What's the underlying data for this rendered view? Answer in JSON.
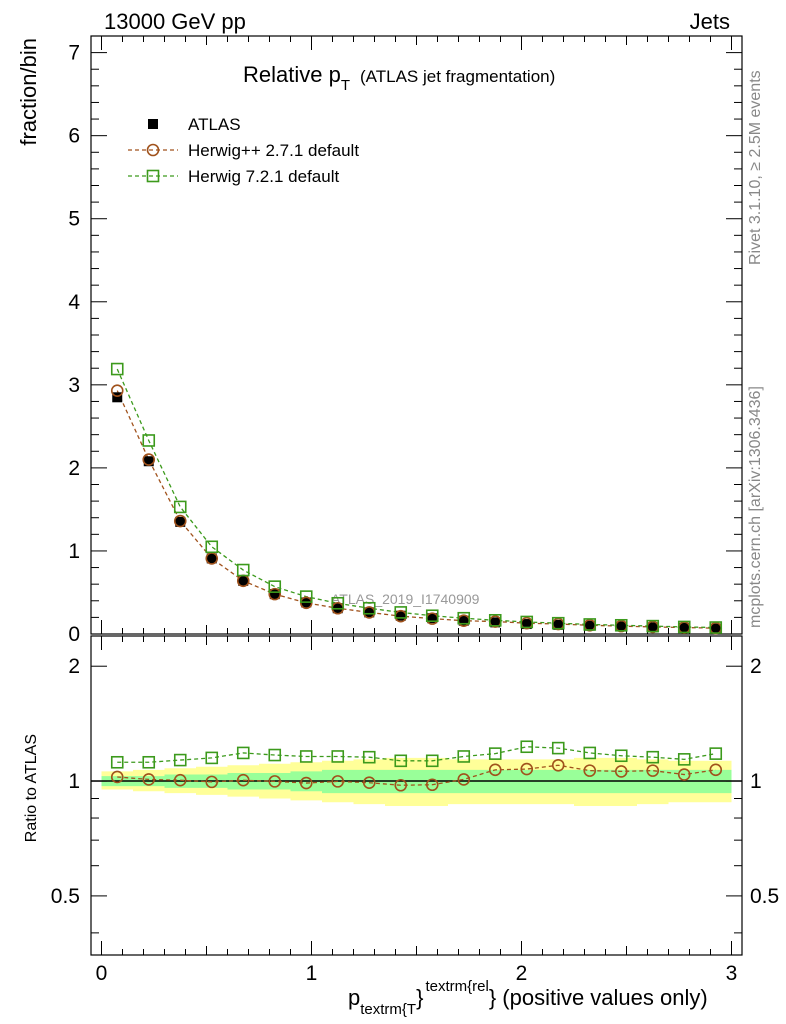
{
  "header": {
    "left": "13000 GeV pp",
    "right": "Jets"
  },
  "side_labels": {
    "rivet": "Rivet 3.1.10, ≥ 2.5M events",
    "mcplots": "mcplots.cern.ch [arXiv:1306.3436]"
  },
  "colors": {
    "atlas": "#000000",
    "herwig_pp": "#a0521c",
    "herwig7": "#3c9a1c",
    "band_outer": "#ffff99",
    "band_inner": "#99ff99"
  },
  "chart_data": [
    {
      "type": "scatter",
      "title_main": "Relative p",
      "title_sub": "T",
      "title_rest": "(ATLAS jet fragmentation)",
      "ylabel": "fraction/bin",
      "watermark": "ATLAS_2019_I1740909",
      "xlim": [
        -0.05,
        3.05
      ],
      "ylim": [
        0,
        7.2
      ],
      "yticks": [
        0,
        1,
        2,
        3,
        4,
        5,
        6,
        7
      ],
      "x": [
        0.075,
        0.225,
        0.375,
        0.525,
        0.675,
        0.825,
        0.975,
        1.125,
        1.275,
        1.425,
        1.575,
        1.725,
        1.875,
        2.025,
        2.175,
        2.325,
        2.475,
        2.625,
        2.775,
        2.925
      ],
      "series": [
        {
          "name": "ATLAS",
          "marker": "square-filled",
          "values": [
            2.85,
            2.08,
            1.35,
            0.91,
            0.64,
            0.48,
            0.38,
            0.31,
            0.26,
            0.22,
            0.19,
            0.16,
            0.14,
            0.12,
            0.11,
            0.1,
            0.09,
            0.08,
            0.075,
            0.065
          ]
        },
        {
          "name": "Herwig++ 2.7.1 default",
          "marker": "circle-open",
          "values": [
            2.93,
            2.1,
            1.36,
            0.91,
            0.64,
            0.48,
            0.375,
            0.31,
            0.26,
            0.215,
            0.185,
            0.16,
            0.15,
            0.13,
            0.12,
            0.105,
            0.095,
            0.085,
            0.078,
            0.07
          ]
        },
        {
          "name": "Herwig 7.2.1 default",
          "marker": "square-open",
          "values": [
            3.19,
            2.33,
            1.53,
            1.05,
            0.77,
            0.57,
            0.45,
            0.37,
            0.31,
            0.26,
            0.22,
            0.19,
            0.165,
            0.145,
            0.13,
            0.115,
            0.105,
            0.095,
            0.085,
            0.078
          ]
        }
      ]
    },
    {
      "type": "scatter",
      "ylabel": "Ratio to ATLAS",
      "xlabel_main": "p",
      "xlabel_sub": "textrm{T",
      "xlabel_sup": "textrm{rel",
      "xlabel_brace": "}",
      "xlabel_rest": "} (positive values only)",
      "xlim": [
        -0.05,
        3.05
      ],
      "ylim": [
        0.35,
        2.4
      ],
      "yscale": "log",
      "yticks": [
        0.5,
        1,
        2
      ],
      "ytick_labels": [
        "0.5",
        "1",
        "2"
      ],
      "xticks": [
        0,
        1,
        2,
        3
      ],
      "xtick_labels": [
        "0",
        "1",
        "2",
        "3"
      ],
      "x": [
        0.075,
        0.225,
        0.375,
        0.525,
        0.675,
        0.825,
        0.975,
        1.125,
        1.275,
        1.425,
        1.575,
        1.725,
        1.875,
        2.025,
        2.175,
        2.325,
        2.475,
        2.625,
        2.775,
        2.925
      ],
      "band_inner": {
        "low": [
          0.97,
          0.97,
          0.96,
          0.96,
          0.95,
          0.95,
          0.94,
          0.93,
          0.93,
          0.93,
          0.93,
          0.93,
          0.93,
          0.93,
          0.93,
          0.93,
          0.93,
          0.93,
          0.93,
          0.93
        ],
        "high": [
          1.03,
          1.03,
          1.04,
          1.04,
          1.05,
          1.05,
          1.06,
          1.07,
          1.07,
          1.07,
          1.07,
          1.07,
          1.07,
          1.07,
          1.07,
          1.07,
          1.07,
          1.07,
          1.07,
          1.07
        ]
      },
      "band_outer": {
        "low": [
          0.95,
          0.94,
          0.93,
          0.92,
          0.91,
          0.9,
          0.89,
          0.88,
          0.87,
          0.86,
          0.86,
          0.87,
          0.87,
          0.87,
          0.87,
          0.86,
          0.86,
          0.87,
          0.88,
          0.88
        ],
        "high": [
          1.06,
          1.07,
          1.08,
          1.09,
          1.1,
          1.11,
          1.12,
          1.13,
          1.14,
          1.15,
          1.15,
          1.14,
          1.14,
          1.14,
          1.14,
          1.15,
          1.15,
          1.14,
          1.13,
          1.13
        ]
      },
      "series": [
        {
          "name": "Herwig++ 2.7.1 default",
          "marker": "circle-open",
          "values": [
            1.025,
            1.01,
            1.005,
            0.995,
            1.005,
            0.998,
            0.988,
            0.998,
            0.99,
            0.975,
            0.978,
            1.01,
            1.07,
            1.075,
            1.1,
            1.065,
            1.06,
            1.065,
            1.04,
            1.07
          ]
        },
        {
          "name": "Herwig 7.2.1 default",
          "marker": "square-open",
          "values": [
            1.12,
            1.12,
            1.135,
            1.15,
            1.185,
            1.17,
            1.16,
            1.16,
            1.155,
            1.13,
            1.13,
            1.16,
            1.18,
            1.23,
            1.22,
            1.185,
            1.165,
            1.155,
            1.14,
            1.18
          ]
        }
      ]
    }
  ]
}
